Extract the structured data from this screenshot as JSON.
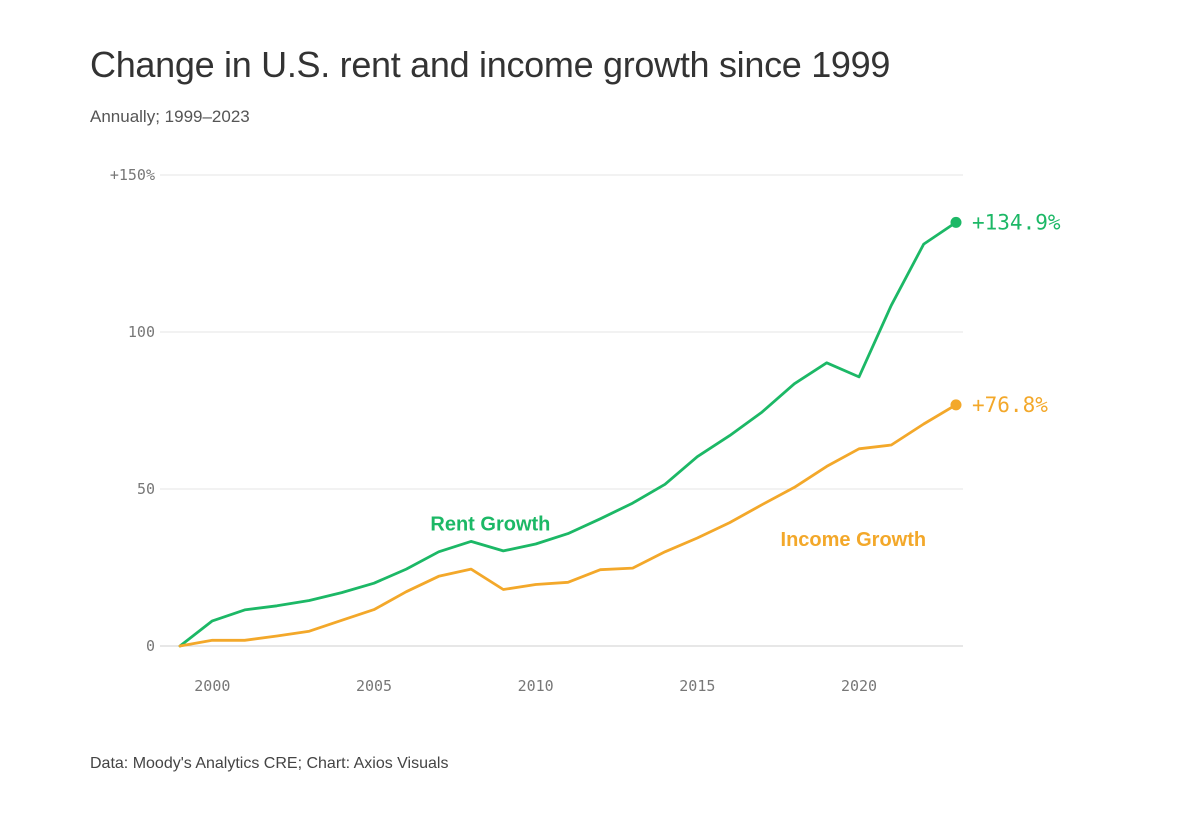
{
  "header": {
    "title": "Change in U.S. rent and income growth since 1999",
    "subtitle": "Annually; 1999–2023"
  },
  "footer": {
    "source": "Data: Moody's Analytics CRE; Chart: Axios Visuals"
  },
  "chart_data": {
    "type": "line",
    "title": "Change in U.S. rent and income growth since 1999",
    "subtitle": "Annually; 1999–2023",
    "xlabel": "",
    "ylabel": "",
    "xlim": [
      1999,
      2023
    ],
    "ylim": [
      0,
      150
    ],
    "x_ticks": [
      2000,
      2005,
      2010,
      2015,
      2020
    ],
    "x_tick_labels": [
      "2000",
      "2005",
      "2010",
      "2015",
      "2020"
    ],
    "y_ticks": [
      0,
      50,
      100,
      150
    ],
    "y_tick_labels": [
      "0",
      "50",
      "100",
      "+150%"
    ],
    "grid": true,
    "x": [
      1999,
      2000,
      2001,
      2002,
      2003,
      2004,
      2005,
      2006,
      2007,
      2008,
      2009,
      2010,
      2011,
      2012,
      2013,
      2014,
      2015,
      2016,
      2017,
      2018,
      2019,
      2020,
      2021,
      2022,
      2023
    ],
    "series": [
      {
        "name": "Rent Growth",
        "color": "#1cb866",
        "values": [
          0,
          8,
          11.5,
          12.8,
          14.5,
          17,
          20,
          24.5,
          30,
          33.3,
          30.3,
          32.5,
          35.8,
          40.5,
          45.5,
          51.5,
          60.3,
          67,
          74.5,
          83.5,
          90.2,
          85.7,
          108.5,
          128,
          134.9
        ],
        "end_label": "+134.9%"
      },
      {
        "name": "Income Growth",
        "color": "#f3a82a",
        "values": [
          0,
          1.8,
          1.8,
          3.2,
          4.7,
          8.2,
          11.6,
          17.3,
          22.2,
          24.5,
          18,
          19.6,
          20.3,
          24.3,
          24.8,
          30,
          34.4,
          39.3,
          45,
          50.5,
          57.2,
          62.8,
          64,
          70.7,
          76.8
        ],
        "end_label": "+76.8%"
      }
    ]
  }
}
